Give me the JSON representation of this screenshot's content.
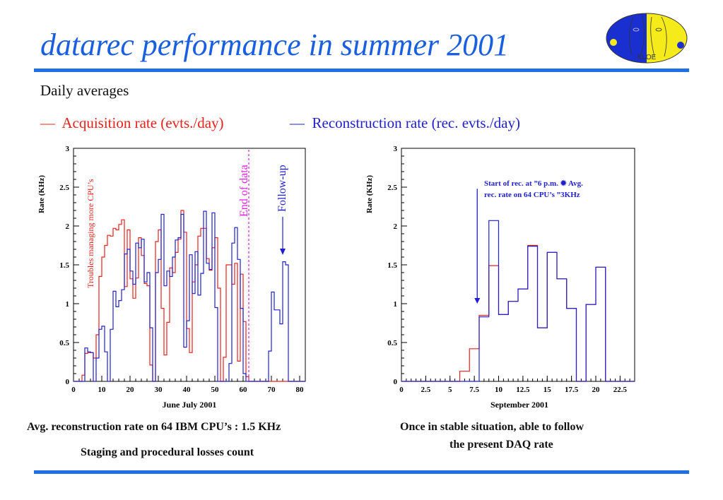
{
  "header": {
    "title": "datarec performance in summer 2001",
    "logo_text": "KLOE",
    "subtitle": "Daily averages"
  },
  "legend": [
    {
      "symbol": "—",
      "label": "Acquisition rate (evts./day)",
      "color": "#e8201c"
    },
    {
      "symbol": "—",
      "label": "Reconstruction rate (rec. evts./day)",
      "color": "#1f1fd0"
    }
  ],
  "captions": {
    "left_line1": "Avg. reconstruction rate on 64 IBM CPU’s : 1.5 KHz",
    "left_line2": "Staging and procedural losses count",
    "right_line1": "Once in stable situation, able to follow",
    "right_line2": "the  present DAQ rate"
  },
  "chart_data": [
    {
      "type": "line",
      "style": "histogram-step",
      "title": "",
      "xlabel": "June July 2001",
      "ylabel": "Rate (KHz)",
      "xlim": [
        0,
        82
      ],
      "ylim": [
        0,
        3
      ],
      "xticks": [
        "0",
        "10",
        "20",
        "30",
        "40",
        "50",
        "60",
        "70",
        "80"
      ],
      "yticks": [
        "0",
        "0.5",
        "1",
        "1.5",
        "2",
        "2.5",
        "3"
      ],
      "annotations": {
        "troubles": "Troubles  managing  more  CPU’s",
        "end_of_data": "End of data",
        "end_of_data_x": 62,
        "follow_up": "Follow-up"
      },
      "series": [
        {
          "name": "Acquisition rate",
          "color": "#e8201c",
          "bin_width": 1,
          "x_start": 0,
          "values": [
            0,
            0,
            0,
            0.08,
            0.36,
            0.37,
            0.37,
            0.3,
            0.6,
            1.35,
            1.6,
            1.75,
            1.88,
            1.87,
            1.97,
            1.95,
            2.02,
            2.08,
            1.22,
            1.95,
            1.32,
            1.07,
            1.33,
            1.85,
            1.62,
            1.26,
            1.23,
            0.21,
            0,
            1.8,
            1.95,
            0.94,
            0.34,
            0.76,
            1.46,
            1.4,
            1.66,
            1.83,
            2.2,
            1.92,
            0.68,
            0.37,
            1.28,
            1.5,
            1.87,
            1.97,
            1.97,
            1.58,
            1.43,
            1.72,
            1.85,
            1.2,
            0,
            0.31,
            1.5,
            1.5,
            1.25,
            1.52,
            0.26,
            1.38,
            0.77,
            0.06
          ]
        },
        {
          "name": "Reconstruction rate",
          "color": "#1f1fd0",
          "bin_width": 1,
          "x_start": 0,
          "values": [
            0,
            0,
            0,
            0,
            0.43,
            0.38,
            0.37,
            0,
            0.3,
            0.67,
            0.71,
            0.38,
            0,
            0.67,
            1.16,
            0.96,
            1.04,
            1.18,
            1.64,
            1.7,
            1.42,
            1.25,
            1.78,
            1.72,
            1.83,
            1.28,
            1.4,
            0.69,
            0,
            1.4,
            1.57,
            2.15,
            1.23,
            1.42,
            1.35,
            1.6,
            1.82,
            1.85,
            2.15,
            0.44,
            0.78,
            1.63,
            1.13,
            1.67,
            1.11,
            1.39,
            2.19,
            1.52,
            1.44,
            2.17,
            0.95,
            0,
            0,
            0,
            0,
            0.23,
            1.78,
            1.98,
            1.57,
            0.94,
            0.1,
            0,
            0,
            0,
            0,
            0,
            0,
            0,
            0,
            0.39,
            1.15,
            0.92,
            0.92,
            0.74,
            1.54,
            1.5,
            0
          ]
        }
      ]
    },
    {
      "type": "line",
      "style": "histogram-step",
      "title": "",
      "xlabel": "September 2001",
      "ylabel": "Rate (KHz)",
      "xlim": [
        0,
        24
      ],
      "ylim": [
        0,
        3
      ],
      "xticks": [
        "0",
        "2.5",
        "5",
        "7.5",
        "10",
        "12.5",
        "15",
        "17.5",
        "20",
        "22.5"
      ],
      "yticks": [
        "0",
        "0.5",
        "1",
        "1.5",
        "2",
        "2.5",
        "3"
      ],
      "annotations": {
        "note_line1": "Start of rec. at  ”6 p.m.  ✹ Avg.",
        "note_line2": "rec. rate on 64 CPU’s  ”3KHz",
        "arrow_x": 7.8,
        "arrow_to_y": 1.0
      },
      "series": [
        {
          "name": "Acquisition rate",
          "color": "#e8201c",
          "bin_width": 1,
          "x_start": 0,
          "values": [
            0,
            0,
            0,
            0,
            0,
            0,
            0.13,
            0.42,
            0.85,
            1.49,
            0.86,
            1.03,
            1.19,
            1.75,
            0.69,
            1.66,
            1.32,
            0.94,
            0,
            0.99,
            1.47,
            0
          ]
        },
        {
          "name": "Reconstruction rate",
          "color": "#1f1fd0",
          "bin_width": 1,
          "x_start": 0,
          "values": [
            0,
            0,
            0,
            0,
            0,
            0,
            0,
            0,
            0.83,
            2.07,
            0.86,
            1.03,
            1.19,
            1.74,
            0.69,
            1.66,
            1.32,
            0.94,
            0,
            0.99,
            1.47,
            0
          ]
        }
      ]
    }
  ]
}
